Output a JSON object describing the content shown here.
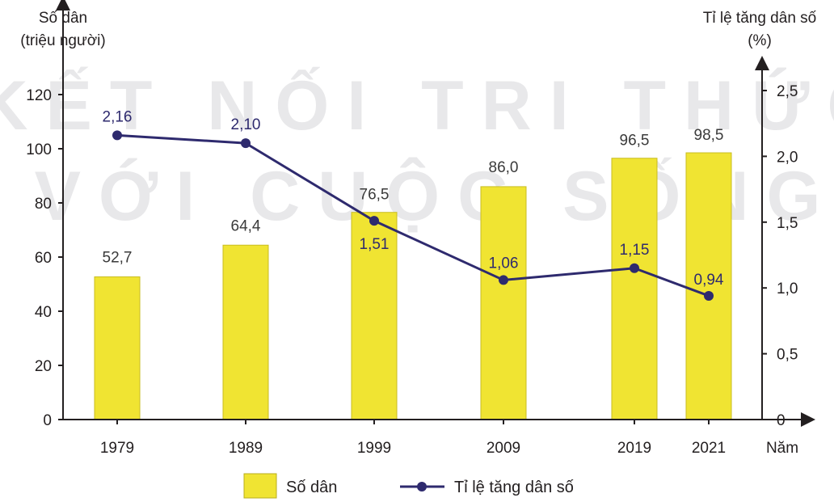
{
  "chart_data": {
    "type": "bar",
    "categories": [
      "1979",
      "1989",
      "1999",
      "2009",
      "2019",
      "2021"
    ],
    "series": [
      {
        "name": "Số dân",
        "type": "bar",
        "axis": "left",
        "color": "#f0e432",
        "values": [
          52.7,
          64.4,
          76.5,
          86.0,
          96.5,
          98.5
        ],
        "labels": [
          "52,7",
          "64,4",
          "76,5",
          "86,0",
          "96,5",
          "98,5"
        ]
      },
      {
        "name": "Tỉ lệ tăng dân số",
        "type": "line",
        "axis": "right",
        "color": "#2e2a6e",
        "values": [
          2.16,
          2.1,
          1.51,
          1.06,
          1.15,
          0.94
        ],
        "labels": [
          "2,16",
          "2,10",
          "1,51",
          "1,06",
          "1,15",
          "0,94"
        ]
      }
    ],
    "y_left": {
      "label_line1": "Số dân",
      "label_line2": "(triệu người)",
      "ylim": [
        0,
        120
      ],
      "ticks": [
        0,
        20,
        40,
        60,
        80,
        100,
        120
      ],
      "tick_labels": [
        "0",
        "20",
        "40",
        "60",
        "80",
        "100",
        "120"
      ]
    },
    "y_right": {
      "label_line1": "Tỉ lệ tăng dân số",
      "label_line2": "(%)",
      "ylim": [
        0,
        2.5
      ],
      "ticks": [
        0,
        0.5,
        1.0,
        1.5,
        2.0,
        2.5
      ],
      "tick_labels": [
        "0",
        "0,5",
        "1,0",
        "1,5",
        "2,0",
        "2,5"
      ]
    },
    "xlabel": "Năm",
    "watermark": [
      "KẾT NỐI TRI THỨC",
      "VỚI CUỘC SỐNG"
    ],
    "grid": false,
    "legend_position": "bottom",
    "legend": [
      {
        "name": "Số dân",
        "kind": "bar"
      },
      {
        "name": "Tỉ lệ tăng dân số",
        "kind": "line"
      }
    ]
  }
}
